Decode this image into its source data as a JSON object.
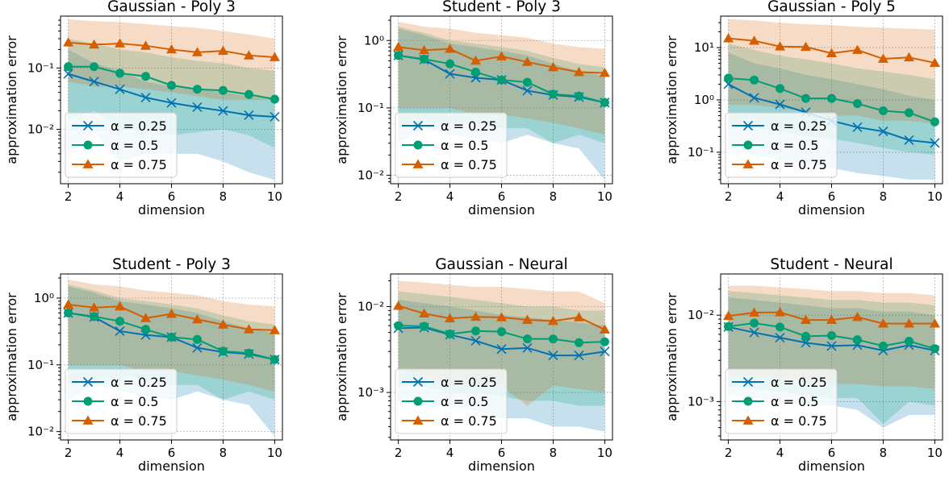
{
  "colors": {
    "alpha_0.25": "#0072B2",
    "alpha_0.5": "#009E73",
    "alpha_0.75": "#D55E00"
  },
  "chart_data": [
    {
      "type": "line",
      "title": "Gaussian - Poly 3",
      "xlabel": "dimension",
      "ylabel": "approximation error",
      "yscale": "log",
      "xlim": [
        1.7,
        10.3
      ],
      "ylim": [
        0.0013,
        0.7
      ],
      "xticks": [
        "2",
        "4",
        "6",
        "8",
        "10"
      ],
      "yticks": [
        {
          "value": 0.01,
          "label": "10⁻²"
        },
        {
          "value": 0.1,
          "label": "10⁻¹"
        }
      ],
      "grid": true,
      "legend_position": "lower-left",
      "x": [
        2,
        3,
        4,
        5,
        6,
        7,
        8,
        9,
        10
      ],
      "series": [
        {
          "name": "α = 0.25",
          "marker": "x",
          "color": "#0072B2",
          "values": [
            0.08,
            0.06,
            0.045,
            0.033,
            0.027,
            0.023,
            0.02,
            0.017,
            0.016
          ],
          "band_low": [
            0.004,
            0.009,
            0.003,
            0.004,
            0.004,
            0.004,
            0.003,
            0.002,
            0.0015
          ],
          "band_high": [
            0.2,
            0.12,
            0.09,
            0.06,
            0.05,
            0.045,
            0.04,
            0.035,
            0.03
          ]
        },
        {
          "name": "α = 0.5",
          "marker": "circle",
          "color": "#009E73",
          "values": [
            0.105,
            0.105,
            0.082,
            0.073,
            0.052,
            0.045,
            0.043,
            0.037,
            0.031
          ],
          "band_low": [
            0.015,
            0.02,
            0.01,
            0.01,
            0.008,
            0.009,
            0.01,
            0.008,
            0.005
          ],
          "band_high": [
            0.3,
            0.25,
            0.2,
            0.18,
            0.15,
            0.13,
            0.12,
            0.1,
            0.09
          ]
        },
        {
          "name": "α = 0.75",
          "marker": "triangle",
          "color": "#D55E00",
          "values": [
            0.26,
            0.24,
            0.25,
            0.23,
            0.2,
            0.18,
            0.19,
            0.16,
            0.15
          ],
          "band_low": [
            0.06,
            0.05,
            0.05,
            0.045,
            0.04,
            0.035,
            0.03,
            0.03,
            0.03
          ],
          "band_high": [
            0.62,
            0.58,
            0.56,
            0.52,
            0.48,
            0.45,
            0.4,
            0.35,
            0.3
          ]
        }
      ]
    },
    {
      "type": "line",
      "title": "Student - Poly 3",
      "xlabel": "dimension",
      "ylabel": "approximation error",
      "yscale": "log",
      "xlim": [
        1.7,
        10.3
      ],
      "ylim": [
        0.0075,
        2.3
      ],
      "xticks": [
        "2",
        "4",
        "6",
        "8",
        "10"
      ],
      "yticks": [
        {
          "value": 0.01,
          "label": "10⁻²"
        },
        {
          "value": 0.1,
          "label": "10⁻¹"
        },
        {
          "value": 1,
          "label": "10⁰"
        }
      ],
      "grid": true,
      "legend_position": "lower-left",
      "x": [
        2,
        3,
        4,
        5,
        6,
        7,
        8,
        9,
        10
      ],
      "series": [
        {
          "name": "α = 0.25",
          "marker": "x",
          "color": "#0072B2",
          "values": [
            0.6,
            0.52,
            0.32,
            0.28,
            0.26,
            0.18,
            0.155,
            0.145,
            0.12
          ],
          "band_low": [
            0.03,
            0.05,
            0.04,
            0.035,
            0.03,
            0.04,
            0.03,
            0.025,
            0.0085
          ],
          "band_high": [
            1.5,
            1.2,
            0.9,
            0.8,
            0.7,
            0.6,
            0.45,
            0.35,
            0.3
          ]
        },
        {
          "name": "α = 0.5",
          "marker": "circle",
          "color": "#009E73",
          "values": [
            0.6,
            0.53,
            0.45,
            0.34,
            0.26,
            0.24,
            0.16,
            0.15,
            0.12
          ],
          "band_low": [
            0.05,
            0.06,
            0.06,
            0.06,
            0.05,
            0.05,
            0.03,
            0.04,
            0.03
          ],
          "band_high": [
            1.6,
            1.3,
            1.0,
            0.9,
            0.8,
            0.7,
            0.55,
            0.45,
            0.4
          ]
        },
        {
          "name": "α = 0.75",
          "marker": "triangle",
          "color": "#D55E00",
          "values": [
            0.8,
            0.72,
            0.75,
            0.5,
            0.58,
            0.48,
            0.4,
            0.34,
            0.33
          ],
          "band_low": [
            0.1,
            0.1,
            0.1,
            0.08,
            0.08,
            0.07,
            0.06,
            0.05,
            0.04
          ],
          "band_high": [
            1.9,
            1.6,
            1.5,
            1.3,
            1.2,
            1.1,
            0.9,
            0.8,
            0.75
          ]
        }
      ]
    },
    {
      "type": "line",
      "title": "Gaussian - Poly 5",
      "xlabel": "dimension",
      "ylabel": "approximation error",
      "yscale": "log",
      "xlim": [
        1.7,
        10.3
      ],
      "ylim": [
        0.025,
        40
      ],
      "xticks": [
        "2",
        "4",
        "6",
        "8",
        "10"
      ],
      "yticks": [
        {
          "value": 0.1,
          "label": "10⁻¹"
        },
        {
          "value": 1,
          "label": "10⁰"
        },
        {
          "value": 10,
          "label": "10¹"
        }
      ],
      "grid": true,
      "legend_position": "lower-left",
      "x": [
        2,
        3,
        4,
        5,
        6,
        7,
        8,
        9,
        10
      ],
      "series": [
        {
          "name": "α = 0.25",
          "marker": "x",
          "color": "#0072B2",
          "values": [
            2.0,
            1.1,
            0.82,
            0.58,
            0.4,
            0.3,
            0.25,
            0.17,
            0.15
          ],
          "band_low": [
            0.12,
            0.09,
            0.07,
            0.06,
            0.05,
            0.04,
            0.035,
            0.03,
            0.03
          ],
          "band_high": [
            8,
            5,
            4,
            3,
            2.5,
            2,
            1.6,
            1.2,
            1.0
          ]
        },
        {
          "name": "α = 0.5",
          "marker": "circle",
          "color": "#009E73",
          "values": [
            2.6,
            2.4,
            1.65,
            1.07,
            1.07,
            0.85,
            0.62,
            0.57,
            0.38
          ],
          "band_low": [
            0.3,
            0.3,
            0.25,
            0.2,
            0.18,
            0.15,
            0.12,
            0.1,
            0.09
          ],
          "band_high": [
            12,
            9,
            7,
            6,
            5,
            4,
            3.5,
            3,
            2.5
          ]
        },
        {
          "name": "α = 0.75",
          "marker": "triangle",
          "color": "#D55E00",
          "values": [
            15,
            13.5,
            10.5,
            10.3,
            7.8,
            9.0,
            6.1,
            6.5,
            5.1
          ],
          "band_low": [
            0.8,
            0.8,
            0.7,
            0.6,
            0.5,
            0.5,
            0.4,
            0.4,
            0.35
          ],
          "band_high": [
            35,
            33,
            30,
            28,
            27,
            25,
            24,
            23,
            22
          ]
        }
      ]
    },
    {
      "type": "line",
      "title": "Student - Poly 3",
      "xlabel": "dimension",
      "ylabel": "approximation error",
      "yscale": "log",
      "xlim": [
        1.7,
        10.3
      ],
      "ylim": [
        0.0075,
        2.3
      ],
      "xticks": [
        "2",
        "4",
        "6",
        "8",
        "10"
      ],
      "yticks": [
        {
          "value": 0.01,
          "label": "10⁻²"
        },
        {
          "value": 0.1,
          "label": "10⁻¹"
        },
        {
          "value": 1,
          "label": "10⁰"
        }
      ],
      "grid": true,
      "legend_position": "lower-left",
      "x": [
        2,
        3,
        4,
        5,
        6,
        7,
        8,
        9,
        10
      ],
      "series": [
        {
          "name": "α = 0.25",
          "marker": "x",
          "color": "#0072B2",
          "values": [
            0.6,
            0.52,
            0.32,
            0.28,
            0.26,
            0.18,
            0.155,
            0.145,
            0.12
          ],
          "band_low": [
            0.03,
            0.05,
            0.04,
            0.035,
            0.03,
            0.04,
            0.03,
            0.025,
            0.0085
          ],
          "band_high": [
            1.5,
            1.2,
            0.9,
            0.8,
            0.7,
            0.6,
            0.45,
            0.35,
            0.3
          ]
        },
        {
          "name": "α = 0.5",
          "marker": "circle",
          "color": "#009E73",
          "values": [
            0.6,
            0.53,
            0.45,
            0.34,
            0.26,
            0.24,
            0.16,
            0.15,
            0.12
          ],
          "band_low": [
            0.05,
            0.06,
            0.06,
            0.06,
            0.05,
            0.05,
            0.03,
            0.04,
            0.03
          ],
          "band_high": [
            1.6,
            1.3,
            1.0,
            0.9,
            0.8,
            0.7,
            0.55,
            0.45,
            0.4
          ]
        },
        {
          "name": "α = 0.75",
          "marker": "triangle",
          "color": "#D55E00",
          "values": [
            0.8,
            0.72,
            0.75,
            0.5,
            0.58,
            0.48,
            0.4,
            0.34,
            0.33
          ],
          "band_low": [
            0.1,
            0.1,
            0.1,
            0.08,
            0.08,
            0.07,
            0.06,
            0.05,
            0.04
          ],
          "band_high": [
            1.9,
            1.6,
            1.5,
            1.3,
            1.2,
            1.1,
            0.9,
            0.8,
            0.75
          ]
        }
      ]
    },
    {
      "type": "line",
      "title": "Gaussian - Neural",
      "xlabel": "dimension",
      "ylabel": "approximation error",
      "yscale": "log",
      "xlim": [
        1.7,
        10.3
      ],
      "ylim": [
        0.00028,
        0.024
      ],
      "xticks": [
        "2",
        "4",
        "6",
        "8",
        "10"
      ],
      "yticks": [
        {
          "value": 0.001,
          "label": "10⁻³"
        },
        {
          "value": 0.01,
          "label": "10⁻²"
        }
      ],
      "grid": true,
      "legend_position": "lower-left",
      "x": [
        2,
        3,
        4,
        5,
        6,
        7,
        8,
        9,
        10
      ],
      "series": [
        {
          "name": "α = 0.25",
          "marker": "x",
          "color": "#0072B2",
          "values": [
            0.0056,
            0.0057,
            0.0047,
            0.004,
            0.0032,
            0.0033,
            0.0027,
            0.0027,
            0.003
          ],
          "band_low": [
            0.0008,
            0.0007,
            0.0007,
            0.0006,
            0.0005,
            0.0005,
            0.0004,
            0.0004,
            0.00035
          ],
          "band_high": [
            0.012,
            0.011,
            0.01,
            0.009,
            0.008,
            0.0075,
            0.007,
            0.0065,
            0.006
          ]
        },
        {
          "name": "α = 0.5",
          "marker": "circle",
          "color": "#009E73",
          "values": [
            0.006,
            0.0059,
            0.0048,
            0.0052,
            0.0051,
            0.0042,
            0.0042,
            0.0038,
            0.0039
          ],
          "band_low": [
            0.0012,
            0.0012,
            0.001,
            0.001,
            0.0009,
            0.0008,
            0.0008,
            0.0007,
            0.0007
          ],
          "band_high": [
            0.015,
            0.014,
            0.013,
            0.012,
            0.011,
            0.01,
            0.01,
            0.009,
            0.009
          ]
        },
        {
          "name": "α = 0.75",
          "marker": "triangle",
          "color": "#D55E00",
          "values": [
            0.0102,
            0.0083,
            0.0073,
            0.0076,
            0.0075,
            0.007,
            0.0068,
            0.0075,
            0.0054
          ],
          "band_low": [
            0.0018,
            0.0016,
            0.0012,
            0.0013,
            0.0012,
            0.0007,
            0.0012,
            0.0011,
            0.001
          ],
          "band_high": [
            0.02,
            0.019,
            0.018,
            0.017,
            0.017,
            0.016,
            0.015,
            0.015,
            0.011
          ]
        }
      ]
    },
    {
      "type": "line",
      "title": "Student - Neural",
      "xlabel": "dimension",
      "ylabel": "approximation error",
      "yscale": "log",
      "xlim": [
        1.7,
        10.3
      ],
      "ylim": [
        0.00036,
        0.03
      ],
      "xticks": [
        "2",
        "4",
        "6",
        "8",
        "10"
      ],
      "yticks": [
        {
          "value": 0.001,
          "label": "10⁻³"
        },
        {
          "value": 0.01,
          "label": "10⁻²"
        }
      ],
      "grid": true,
      "legend_position": "lower-left",
      "x": [
        2,
        3,
        4,
        5,
        6,
        7,
        8,
        9,
        10
      ],
      "series": [
        {
          "name": "α = 0.25",
          "marker": "x",
          "color": "#0072B2",
          "values": [
            0.0073,
            0.0063,
            0.0055,
            0.0048,
            0.0044,
            0.0045,
            0.0039,
            0.0045,
            0.0039
          ],
          "band_low": [
            0.0012,
            0.0011,
            0.001,
            0.0009,
            0.0009,
            0.0008,
            0.0005,
            0.0007,
            0.0007
          ],
          "band_high": [
            0.016,
            0.015,
            0.014,
            0.013,
            0.012,
            0.012,
            0.011,
            0.011,
            0.01
          ]
        },
        {
          "name": "α = 0.5",
          "marker": "circle",
          "color": "#009E73",
          "values": [
            0.0074,
            0.0081,
            0.0073,
            0.0057,
            0.0058,
            0.0052,
            0.0044,
            0.005,
            0.0041
          ],
          "band_low": [
            0.0015,
            0.0014,
            0.0013,
            0.0012,
            0.0011,
            0.0011,
            0.00055,
            0.001,
            0.0009
          ],
          "band_high": [
            0.019,
            0.018,
            0.017,
            0.016,
            0.015,
            0.015,
            0.014,
            0.014,
            0.013
          ]
        },
        {
          "name": "α = 0.75",
          "marker": "triangle",
          "color": "#D55E00",
          "values": [
            0.0098,
            0.0107,
            0.0108,
            0.0088,
            0.0088,
            0.0095,
            0.008,
            0.008,
            0.008
          ],
          "band_low": [
            0.002,
            0.002,
            0.0019,
            0.0017,
            0.0016,
            0.0016,
            0.0015,
            0.0015,
            0.0014
          ],
          "band_high": [
            0.022,
            0.022,
            0.021,
            0.02,
            0.019,
            0.019,
            0.018,
            0.018,
            0.017
          ]
        }
      ]
    }
  ]
}
